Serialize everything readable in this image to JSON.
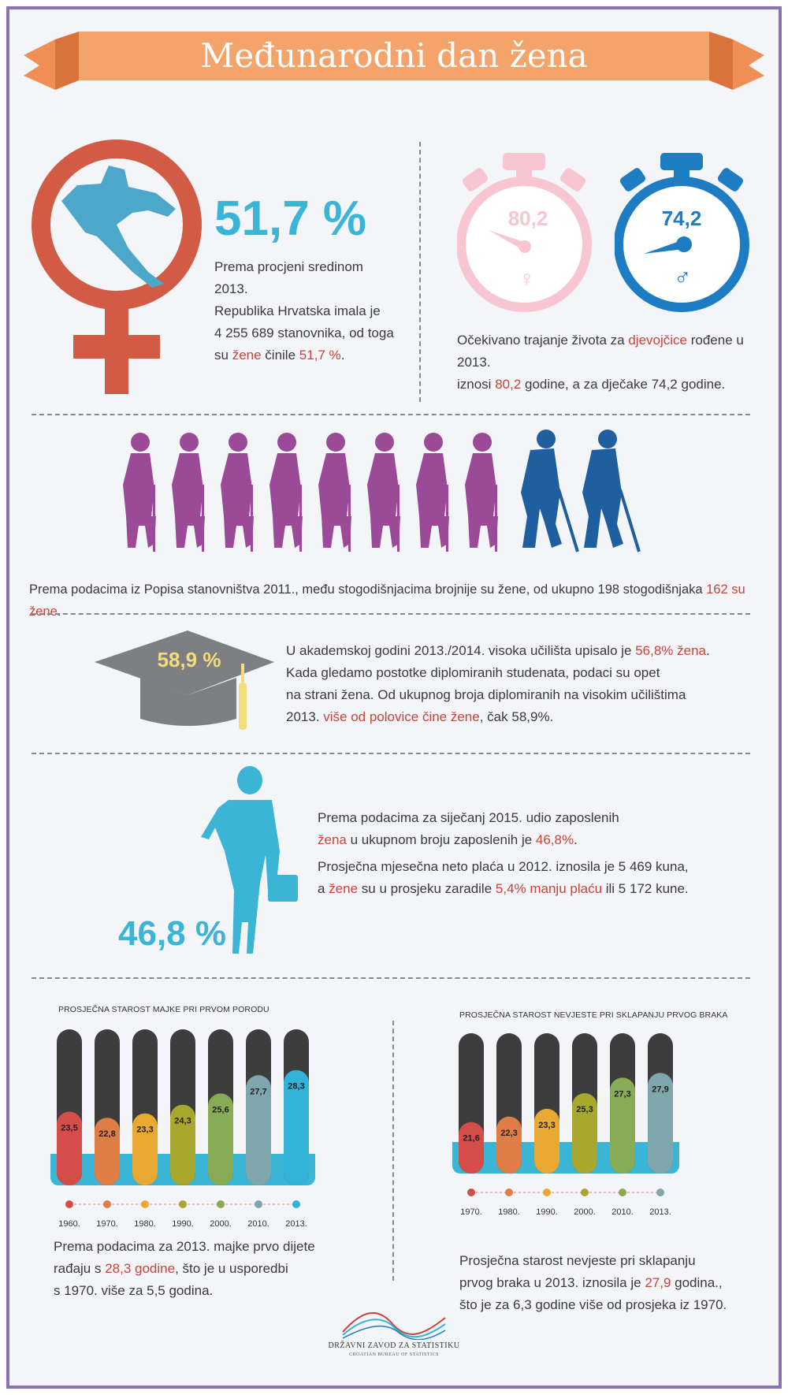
{
  "title": "Međunarodni dan žena",
  "population": {
    "big_value": "51,7 %",
    "text_line1": "Prema procjeni sredinom 2013.",
    "text_line2": "Republika Hrvatska imala je",
    "text_line3": "4 255 689 stanovnika, od toga",
    "text_line4_a": "su ",
    "text_line4_b": "žene",
    "text_line4_c": " činile ",
    "text_line4_d": "51,7 %",
    "text_line4_e": "."
  },
  "life_expectancy": {
    "female_value": "80,2",
    "male_value": "74,2",
    "text_a": "Očekivano trajanje života za ",
    "text_b": "djevojčice",
    "text_c": " rođene u 2013.",
    "text_d": "iznosi ",
    "text_e": "80,2",
    "text_f": " godine, a za dječake 74,2 godine."
  },
  "centenarians": {
    "text_a": "Prema podacima iz Popisa stanovništva 2011., među stogodišnjacima brojnije su žene, od ukupno 198 stogodišnjaka ",
    "text_b": "162 su žene",
    "text_c": "."
  },
  "education": {
    "cap_value": "58,9 %",
    "line1_a": "U akademskoj godini 2013./2014. visoka učilišta upisalo je ",
    "line1_b": "56,8% žena",
    "line1_c": ".",
    "line2": "Kada gledamo postotke diplomiranih studenata, podaci su opet",
    "line3": "na strani žena. Od ukupnog broja diplomiranih na visokim učilištima",
    "line4_a": "2013. ",
    "line4_b": "više od polovice čine žene",
    "line4_c": ", čak 58,9%."
  },
  "employment": {
    "big_value": "46,8 %",
    "line1": "Prema podacima za siječanj 2015. udio zaposlenih",
    "line2_a": "žena",
    "line2_b": " u ukupnom broju zaposlenih je ",
    "line2_c": "46,8%",
    "line2_d": ".",
    "line3": "Prosječna mjesečna neto plaća u 2012. iznosila je 5 469 kuna,",
    "line4_a": "a ",
    "line4_b": "žene",
    "line4_c": " su u prosjeku zaradile ",
    "line4_d": "5,4% manju plaću",
    "line4_e": " ili 5 172 kune."
  },
  "mother_caption": {
    "line1": "Prema podacima za 2013. majke prvo dijete",
    "line2_a": "rađaju s ",
    "line2_b": "28,3 godine",
    "line2_c": ", što je u usporedbi",
    "line3": "s 1970. više za 5,5 godina."
  },
  "bride_caption": {
    "line1": "Prosječna starost nevjeste pri sklapanju",
    "line2_a": "prvog braka u 2013. iznosila je ",
    "line2_b": "27,9",
    "line2_c": " godina.,",
    "line3": "što je za 6,3 godine više od prosjeka iz 1970."
  },
  "footer": {
    "org": "DRŽAVNI ZAVOD ZA STATISTIKU",
    "org_en": "CROATIAN BUREAU OF STATISTICS"
  },
  "colors": {
    "accent_orange": "#f4a36a",
    "female_red": "#d25b46",
    "male_blue": "#1e7cc2",
    "purple_figure": "#9b4a98",
    "blue_figure": "#1f5f9f",
    "cyan": "#3bb5d6",
    "bar_top": "#3d3d3d"
  },
  "chart_data": [
    {
      "type": "bar",
      "title": "PROSJEČNA STAROST MAJKE PRI PRVOM PORODU",
      "categories": [
        "1960.",
        "1970.",
        "1980.",
        "1990.",
        "2000.",
        "2010.",
        "2013."
      ],
      "labels": [
        "23,5",
        "22,8",
        "23,3",
        "24,3",
        "25,6",
        "27,7",
        "28,3"
      ],
      "values": [
        23.5,
        22.8,
        23.3,
        24.3,
        25.6,
        27.7,
        28.3
      ],
      "colors": [
        "#d64c48",
        "#de7d45",
        "#e9a832",
        "#a8a82e",
        "#88ac55",
        "#7fa7ab",
        "#33b2d9"
      ]
    },
    {
      "type": "bar",
      "title": "PROSJEČNA STAROST NEVJESTE PRI SKLAPANJU PRVOG BRAKA",
      "categories": [
        "1970.",
        "1980.",
        "1990.",
        "2000.",
        "2010.",
        "2013."
      ],
      "labels": [
        "21,6",
        "22,3",
        "23,3",
        "25,3",
        "27,3",
        "27,9"
      ],
      "values": [
        21.6,
        22.3,
        23.3,
        25.3,
        27.3,
        27.9
      ],
      "colors": [
        "#d64c48",
        "#de7d45",
        "#e9a832",
        "#a8a82e",
        "#88ac55",
        "#7fa7ab"
      ]
    }
  ]
}
